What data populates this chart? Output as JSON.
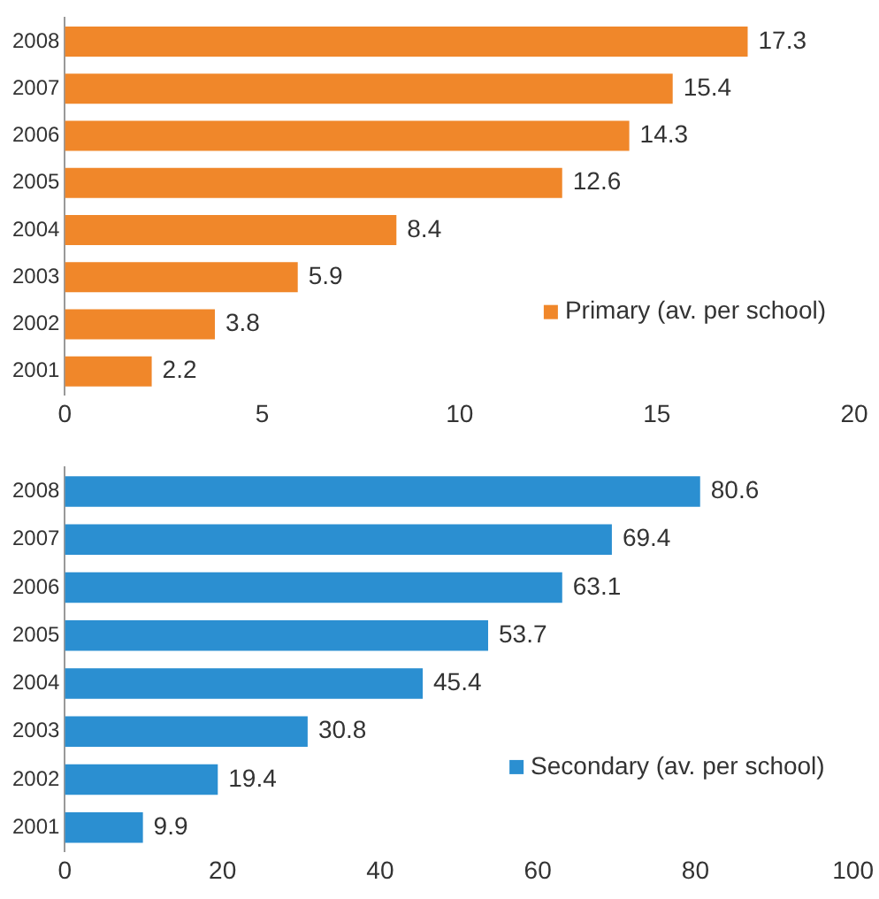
{
  "chart_data": [
    {
      "type": "bar",
      "orientation": "horizontal",
      "categories": [
        "2008",
        "2007",
        "2006",
        "2005",
        "2004",
        "2003",
        "2002",
        "2001"
      ],
      "series": [
        {
          "name": "Primary (av. per school)",
          "color": "#f0872a",
          "values": [
            17.3,
            15.4,
            14.3,
            12.6,
            8.4,
            5.9,
            3.8,
            2.2
          ]
        }
      ],
      "xlim": [
        0,
        20
      ],
      "xticks": [
        0,
        5,
        10,
        15,
        20
      ],
      "grid": false,
      "legend": "bottom right",
      "data_labels": true
    },
    {
      "type": "bar",
      "orientation": "horizontal",
      "categories": [
        "2008",
        "2007",
        "2006",
        "2005",
        "2004",
        "2003",
        "2002",
        "2001"
      ],
      "series": [
        {
          "name": "Secondary (av. per school)",
          "color": "#2b8fd1",
          "values": [
            80.6,
            69.4,
            63.1,
            53.7,
            45.4,
            30.8,
            19.4,
            9.9
          ]
        }
      ],
      "xlim": [
        0,
        100
      ],
      "xticks": [
        0,
        20,
        40,
        60,
        80,
        100
      ],
      "grid": false,
      "legend": "bottom right",
      "data_labels": true
    }
  ]
}
